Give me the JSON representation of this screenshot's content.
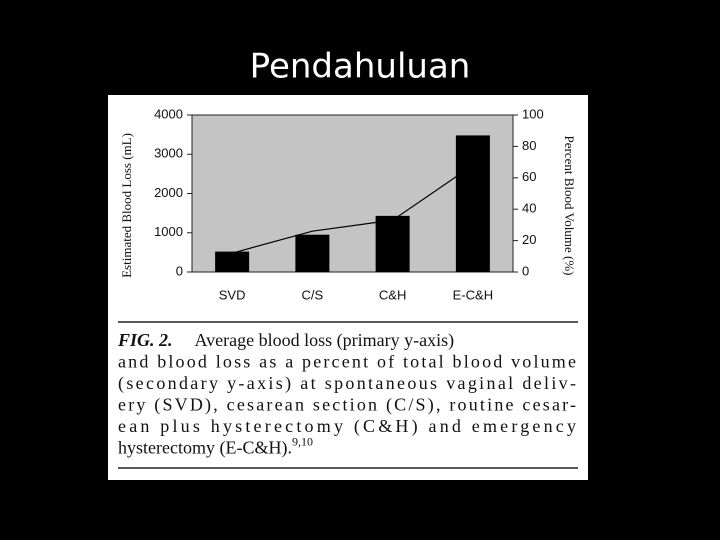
{
  "slide_title": "Pendahuluan",
  "chart_data": {
    "type": "bar",
    "categories": [
      "SVD",
      "C/S",
      "C&H",
      "E-C&H"
    ],
    "series": [
      {
        "type": "bar",
        "color": "#000000",
        "values": [
          520,
          950,
          1430,
          3480
        ]
      },
      {
        "type": "line",
        "color": "#000000",
        "axis": "y2",
        "values": [
          12,
          26,
          33,
          68
        ]
      }
    ],
    "ylabel": "Estimated Blood Loss (mL)",
    "y2label": "Percent Blood Volume (%)",
    "ylim": [
      0,
      4000
    ],
    "yticks": [
      0,
      1000,
      2000,
      3000,
      4000
    ],
    "y2lim": [
      0,
      100
    ],
    "y2ticks": [
      0,
      20,
      40,
      60,
      80,
      100
    ],
    "plot_background": "#c4c4c4"
  },
  "caption": {
    "label": "FIG. 2.",
    "lines": [
      "Average blood loss (primary y-axis)",
      "and blood loss as a percent of total blood volume",
      "(secondary y-axis) at spontaneous vaginal deliv-",
      "ery (SVD), cesarean section (C/S), routine cesar-",
      "ean plus hysterectomy (C&H) and emergency",
      "hysterectomy (E-C&H)."
    ],
    "refs": "9,10"
  }
}
